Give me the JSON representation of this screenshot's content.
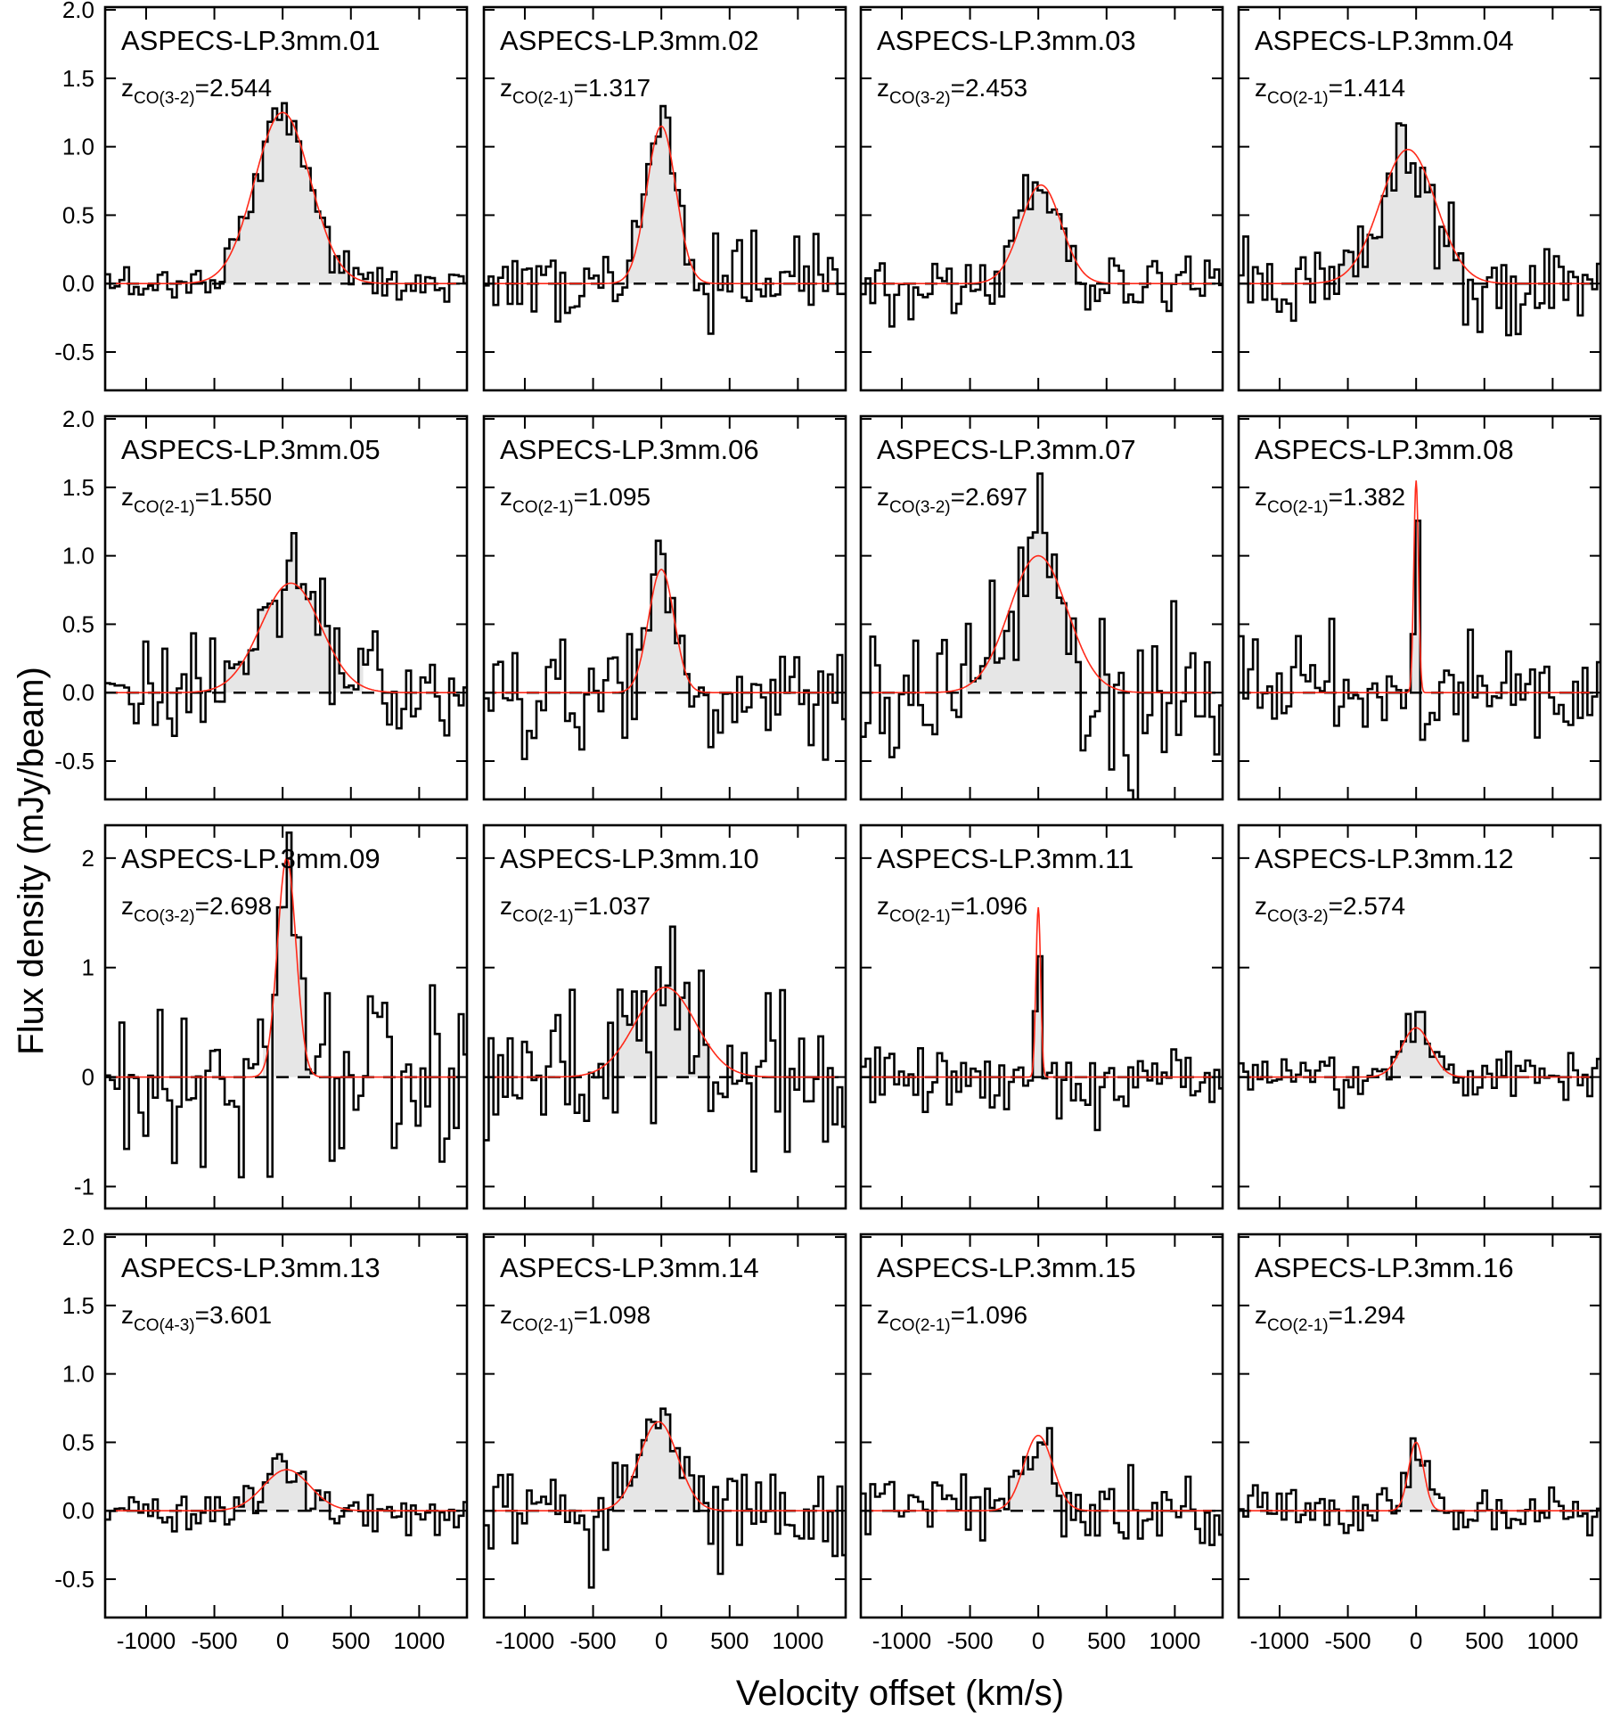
{
  "chart_data": {
    "type": "line",
    "layout": "4x4 grid of spectra",
    "xlabel": "Velocity offset (km/s)",
    "ylabel": "Flux density (mJy/beam)",
    "xlim": [
      -1300,
      1350
    ],
    "x_ticks": [
      -1000,
      -500,
      0,
      500,
      1000
    ],
    "x_tick_labels": [
      "-1000",
      "-500",
      "0",
      "500",
      "1000"
    ],
    "rows": [
      {
        "ylim": [
          -0.78,
          2.02
        ],
        "y_ticks": [
          -0.5,
          0.0,
          0.5,
          1.0,
          1.5,
          2.0
        ],
        "y_tick_labels": [
          "-0.5",
          "0.0",
          "0.5",
          "1.0",
          "1.5",
          "2.0"
        ]
      },
      {
        "ylim": [
          -0.78,
          2.02
        ],
        "y_ticks": [
          -0.5,
          0.0,
          0.5,
          1.0,
          1.5,
          2.0
        ],
        "y_tick_labels": [
          "-0.5",
          "0.0",
          "0.5",
          "1.0",
          "1.5",
          "2.0"
        ]
      },
      {
        "ylim": [
          -1.2,
          2.3
        ],
        "y_ticks": [
          -1,
          0,
          1,
          2
        ],
        "y_tick_labels": [
          "-1",
          "0",
          "1",
          "2"
        ]
      },
      {
        "ylim": [
          -0.78,
          2.02
        ],
        "y_ticks": [
          -0.5,
          0.0,
          0.5,
          1.0,
          1.5,
          2.0
        ],
        "y_tick_labels": [
          "-0.5",
          "0.0",
          "0.5",
          "1.0",
          "1.5",
          "2.0"
        ]
      }
    ],
    "colors": {
      "spectrum": "#000000",
      "fit": "#ff2a1a",
      "line_fill": "#e6e6e6",
      "zero_line": "#000000"
    },
    "panels": [
      {
        "title": "ASPECS-LP.3mm.01",
        "z_transition": "CO(3-2)",
        "z_value": "=2.544",
        "fit": {
          "amp": 1.25,
          "center": 0,
          "fwhm": 480
        },
        "noise_rms": 0.07
      },
      {
        "title": "ASPECS-LP.3mm.02",
        "z_transition": "CO(2-1)",
        "z_value": "=1.317",
        "fit": {
          "amp": 1.15,
          "center": 0,
          "fwhm": 250
        },
        "noise_rms": 0.16
      },
      {
        "title": "ASPECS-LP.3mm.03",
        "z_transition": "CO(3-2)",
        "z_value": "=2.453",
        "fit": {
          "amp": 0.72,
          "center": 20,
          "fwhm": 350
        },
        "noise_rms": 0.11
      },
      {
        "title": "ASPECS-LP.3mm.04",
        "z_transition": "CO(2-1)",
        "z_value": "=1.414",
        "fit": {
          "amp": 0.98,
          "center": -60,
          "fwhm": 480
        },
        "noise_rms": 0.2
      },
      {
        "title": "ASPECS-LP.3mm.05",
        "z_transition": "CO(2-1)",
        "z_value": "=1.550",
        "fit": {
          "amp": 0.8,
          "center": 60,
          "fwhm": 520
        },
        "noise_rms": 0.2
      },
      {
        "title": "ASPECS-LP.3mm.06",
        "z_transition": "CO(2-1)",
        "z_value": "=1.095",
        "fit": {
          "amp": 0.9,
          "center": 0,
          "fwhm": 220
        },
        "noise_rms": 0.21
      },
      {
        "title": "ASPECS-LP.3mm.07",
        "z_transition": "CO(3-2)",
        "z_value": "=2.697",
        "fit": {
          "amp": 1.0,
          "center": 0,
          "fwhm": 500
        },
        "noise_rms": 0.3
      },
      {
        "title": "ASPECS-LP.3mm.08",
        "z_transition": "CO(2-1)",
        "z_value": "=1.382",
        "fit": {
          "amp": 1.55,
          "center": 0,
          "fwhm": 40
        },
        "noise_rms": 0.2
      },
      {
        "title": "ASPECS-LP.3mm.09",
        "z_transition": "CO(3-2)",
        "z_value": "=2.698",
        "fit": {
          "amp": 2.0,
          "center": 30,
          "fwhm": 160
        },
        "noise_rms": 0.45
      },
      {
        "title": "ASPECS-LP.3mm.10",
        "z_transition": "CO(2-1)",
        "z_value": "=1.037",
        "fit": {
          "amp": 0.82,
          "center": 30,
          "fwhm": 520
        },
        "noise_rms": 0.35
      },
      {
        "title": "ASPECS-LP.3mm.11",
        "z_transition": "CO(2-1)",
        "z_value": "=1.096",
        "fit": {
          "amp": 1.55,
          "center": 0,
          "fwhm": 40
        },
        "noise_rms": 0.16
      },
      {
        "title": "ASPECS-LP.3mm.12",
        "z_transition": "CO(3-2)",
        "z_value": "=2.574",
        "fit": {
          "amp": 0.45,
          "center": 0,
          "fwhm": 250
        },
        "noise_rms": 0.11
      },
      {
        "title": "ASPECS-LP.3mm.13",
        "z_transition": "CO(4-3)",
        "z_value": "=3.601",
        "fit": {
          "amp": 0.3,
          "center": 30,
          "fwhm": 400
        },
        "noise_rms": 0.07
      },
      {
        "title": "ASPECS-LP.3mm.14",
        "z_transition": "CO(2-1)",
        "z_value": "=1.098",
        "fit": {
          "amp": 0.65,
          "center": -20,
          "fwhm": 330
        },
        "noise_rms": 0.18
      },
      {
        "title": "ASPECS-LP.3mm.15",
        "z_transition": "CO(2-1)",
        "z_value": "=1.096",
        "fit": {
          "amp": 0.55,
          "center": 0,
          "fwhm": 250
        },
        "noise_rms": 0.13
      },
      {
        "title": "ASPECS-LP.3mm.16",
        "z_transition": "CO(2-1)",
        "z_value": "=1.294",
        "fit": {
          "amp": 0.5,
          "center": 0,
          "fwhm": 130
        },
        "noise_rms": 0.09
      }
    ]
  }
}
